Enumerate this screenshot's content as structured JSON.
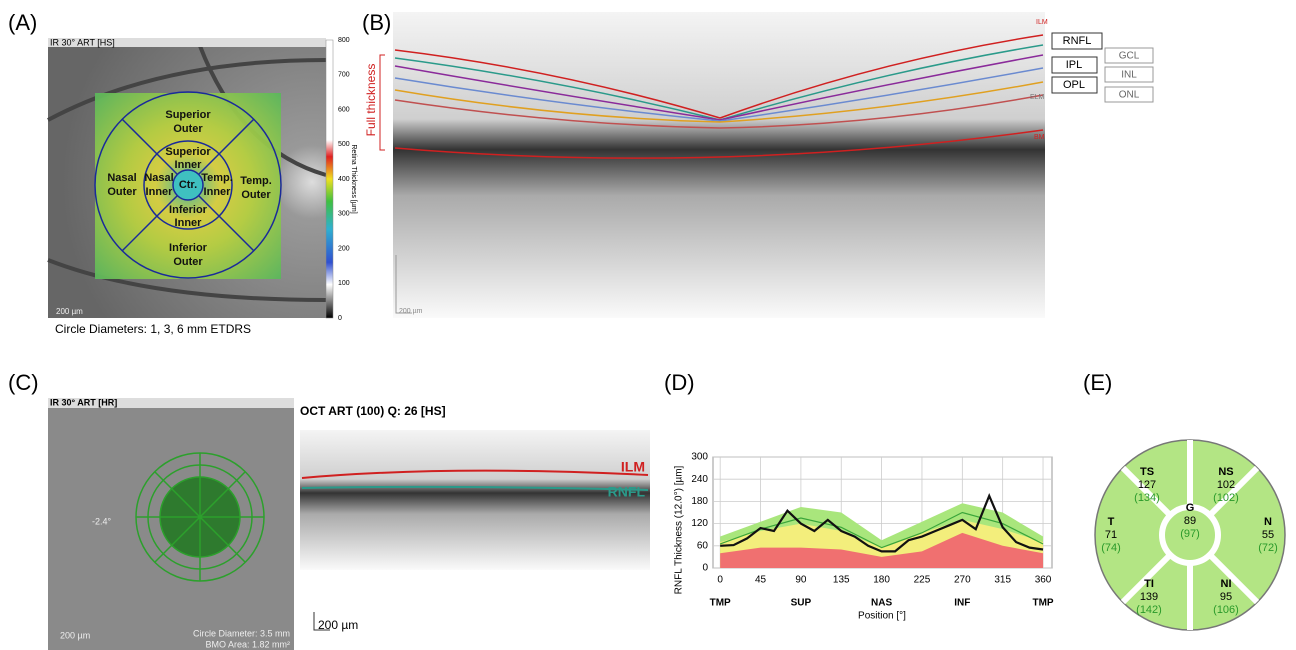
{
  "panel_labels": [
    "(A)",
    "(B)",
    "(C)",
    "(D)",
    "(E)"
  ],
  "panel_a": {
    "header": "IR 30° ART [HS]",
    "scale_bar": "200 µm",
    "footer": "Circle Diameters:   1, 3, 6 mm ETDRS",
    "color_scale": {
      "label": "Retina Thickness [µm]",
      "lim": [
        0,
        800
      ],
      "ticks": [
        0,
        100,
        200,
        300,
        400,
        500,
        600,
        700,
        800
      ]
    },
    "sectors": {
      "superior_outer": [
        "Superior",
        "Outer"
      ],
      "superior_inner": [
        "Superior",
        "Inner"
      ],
      "nasal_outer": [
        "Nasal",
        "Outer"
      ],
      "nasal_inner": [
        "Nasal",
        "Inner"
      ],
      "center": "Ctr.",
      "temp_inner": [
        "Temp.",
        "Inner"
      ],
      "temp_outer": [
        "Temp.",
        "Outer"
      ],
      "inferior_inner": [
        "Inferior",
        "Inner"
      ],
      "inferior_outer": [
        "Inferior",
        "Outer"
      ]
    }
  },
  "panel_b": {
    "full_thickness": "Full thickness",
    "scale_bar": "200 µm",
    "edge_labels": [
      "ILM",
      "ELM",
      "BM"
    ],
    "layers": [
      "RNFL",
      "GCL",
      "IPL",
      "INL",
      "OPL",
      "ONL"
    ]
  },
  "panel_c": {
    "header": "IR 30° ART [HR]",
    "angle": "-2.4°",
    "scale_bar": "200 µm",
    "circle_diameter": "Circle Diameter: 3.5 mm",
    "bmo_area": "BMO Area: 1.82 mm²",
    "oct_title": "OCT ART (100) Q: 26 [HS]",
    "ilm": "ILM",
    "rnfl": "RNFL",
    "oct_scale_bar": "200 µm"
  },
  "chart_data": {
    "type": "line",
    "xlabel": "Position [°]",
    "ylabel": "RNFL Thickness (12.0°) [µm]",
    "xlim": [
      -8,
      370
    ],
    "ylim": [
      0,
      300
    ],
    "xticks": [
      0,
      45,
      90,
      135,
      180,
      225,
      270,
      315,
      360
    ],
    "yticks": [
      0,
      60,
      120,
      180,
      240,
      300
    ],
    "grid": true,
    "sector_labels": [
      {
        "value": 0,
        "label": "TMP"
      },
      {
        "value": 90,
        "label": "SUP"
      },
      {
        "value": 180,
        "label": "NAS"
      },
      {
        "value": 270,
        "label": "INF"
      },
      {
        "value": 360,
        "label": "TMP"
      }
    ],
    "series": [
      {
        "color": "#a9e67c",
        "area": true,
        "x": [
          0,
          45,
          90,
          135,
          180,
          225,
          270,
          315,
          360
        ],
        "values": [
          85,
          125,
          165,
          150,
          75,
          125,
          175,
          150,
          85
        ]
      },
      {
        "color": "#f3ee7c",
        "area": true,
        "x": [
          0,
          45,
          90,
          135,
          180,
          225,
          270,
          315,
          360
        ],
        "values": [
          70,
          100,
          120,
          100,
          55,
          95,
          130,
          105,
          70
        ]
      },
      {
        "color": "#f07070",
        "area": true,
        "x": [
          0,
          45,
          90,
          135,
          180,
          225,
          270,
          315,
          360
        ],
        "values": [
          40,
          55,
          55,
          50,
          30,
          45,
          95,
          60,
          40
        ]
      },
      {
        "color": "#3aa53a",
        "area": false,
        "x": [
          0,
          45,
          90,
          135,
          180,
          225,
          270,
          315,
          360
        ],
        "values": [
          65,
          105,
          135,
          110,
          55,
          95,
          150,
          120,
          65
        ]
      },
      {
        "color": "#111111",
        "area": false,
        "x": [
          0,
          15,
          30,
          45,
          60,
          75,
          90,
          105,
          120,
          135,
          150,
          165,
          180,
          195,
          210,
          225,
          240,
          255,
          270,
          285,
          300,
          315,
          330,
          345,
          360
        ],
        "values": [
          60,
          62,
          80,
          108,
          100,
          155,
          120,
          100,
          130,
          100,
          85,
          60,
          45,
          45,
          75,
          85,
          100,
          115,
          130,
          105,
          195,
          110,
          70,
          55,
          50
        ]
      }
    ]
  },
  "panel_e": {
    "sectors": [
      {
        "name": "TS",
        "value": 127,
        "reference": "(134)"
      },
      {
        "name": "NS",
        "value": 102,
        "reference": "(102)"
      },
      {
        "name": "T",
        "value": 71,
        "reference": "(74)"
      },
      {
        "name": "G",
        "value": 89,
        "reference": "(97)"
      },
      {
        "name": "N",
        "value": 55,
        "reference": "(72)"
      },
      {
        "name": "TI",
        "value": 139,
        "reference": "(142)"
      },
      {
        "name": "NI",
        "value": 95,
        "reference": "(106)"
      }
    ]
  }
}
